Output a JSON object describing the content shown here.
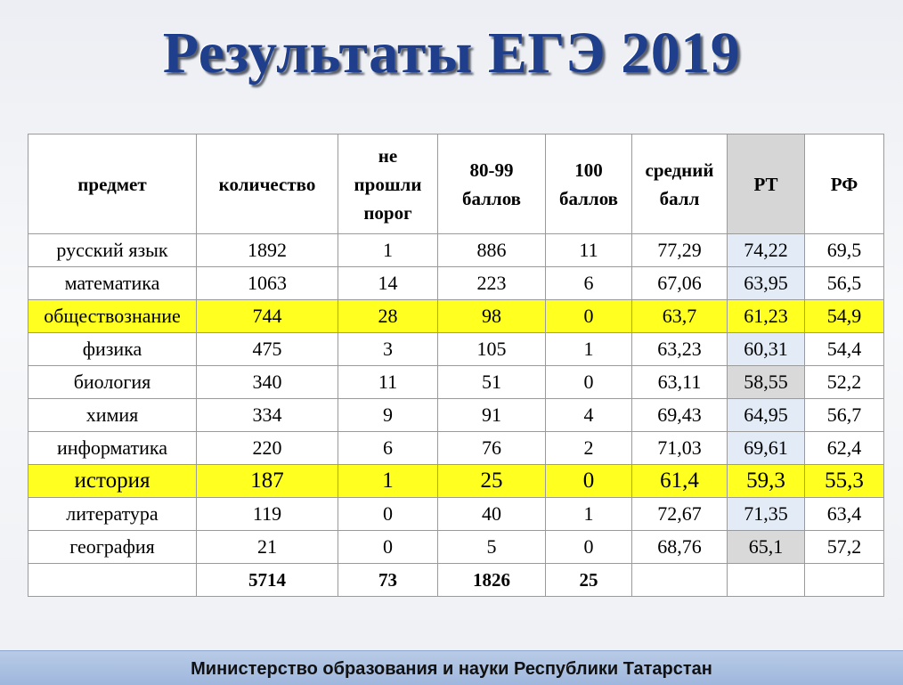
{
  "title": "Результаты ЕГЭ 2019",
  "headers": {
    "subject": "предмет",
    "count": "количество",
    "not_passed_1": "не",
    "not_passed_2": "прошли",
    "not_passed_3": "порог",
    "range_1": "80-99",
    "range_2": "баллов",
    "hundred_1": "100",
    "hundred_2": "баллов",
    "avg_1": "средний",
    "avg_2": "балл",
    "rt": "РТ",
    "rf": "РФ"
  },
  "rows": [
    {
      "subject": "русский язык",
      "count": "1892",
      "not_passed": "1",
      "range": "886",
      "hundred": "11",
      "avg": "77,29",
      "rt": "74,22",
      "rf": "69,5"
    },
    {
      "subject": "математика",
      "count": "1063",
      "not_passed": "14",
      "range": "223",
      "hundred": "6",
      "avg": "67,06",
      "rt": "63,95",
      "rf": "56,5"
    },
    {
      "subject": "обществознание",
      "count": "744",
      "not_passed": "28",
      "range": "98",
      "hundred": "0",
      "avg": "63,7",
      "rt": "61,23",
      "rf": "54,9"
    },
    {
      "subject": "физика",
      "count": "475",
      "not_passed": "3",
      "range": "105",
      "hundred": "1",
      "avg": "63,23",
      "rt": "60,31",
      "rf": "54,4"
    },
    {
      "subject": "биология",
      "count": "340",
      "not_passed": "11",
      "range": "51",
      "hundred": "0",
      "avg": "63,11",
      "rt": "58,55",
      "rf": "52,2"
    },
    {
      "subject": "химия",
      "count": "334",
      "not_passed": "9",
      "range": "91",
      "hundred": "4",
      "avg": "69,43",
      "rt": "64,95",
      "rf": "56,7"
    },
    {
      "subject": "информатика",
      "count": "220",
      "not_passed": "6",
      "range": "76",
      "hundred": "2",
      "avg": "71,03",
      "rt": "69,61",
      "rf": "62,4"
    },
    {
      "subject": "история",
      "count": "187",
      "not_passed": "1",
      "range": "25",
      "hundred": "0",
      "avg": "61,4",
      "rt": "59,3",
      "rf": "55,3"
    },
    {
      "subject": "литература",
      "count": "119",
      "not_passed": "0",
      "range": "40",
      "hundred": "1",
      "avg": "72,67",
      "rt": "71,35",
      "rf": "63,4"
    },
    {
      "subject": "география",
      "count": "21",
      "not_passed": "0",
      "range": "5",
      "hundred": "0",
      "avg": "68,76",
      "rt": "65,1",
      "rf": "57,2"
    }
  ],
  "totals": {
    "count": "5714",
    "not_passed": "73",
    "range": "1826",
    "hundred": "25"
  },
  "footer": "Министерство образования и науки Республики Татарстан",
  "colors": {
    "title": "#1f3f8c",
    "highlight": "#ffff20",
    "rt_column": "#e2ebf6",
    "footer_bar": "#a9bfe1"
  }
}
